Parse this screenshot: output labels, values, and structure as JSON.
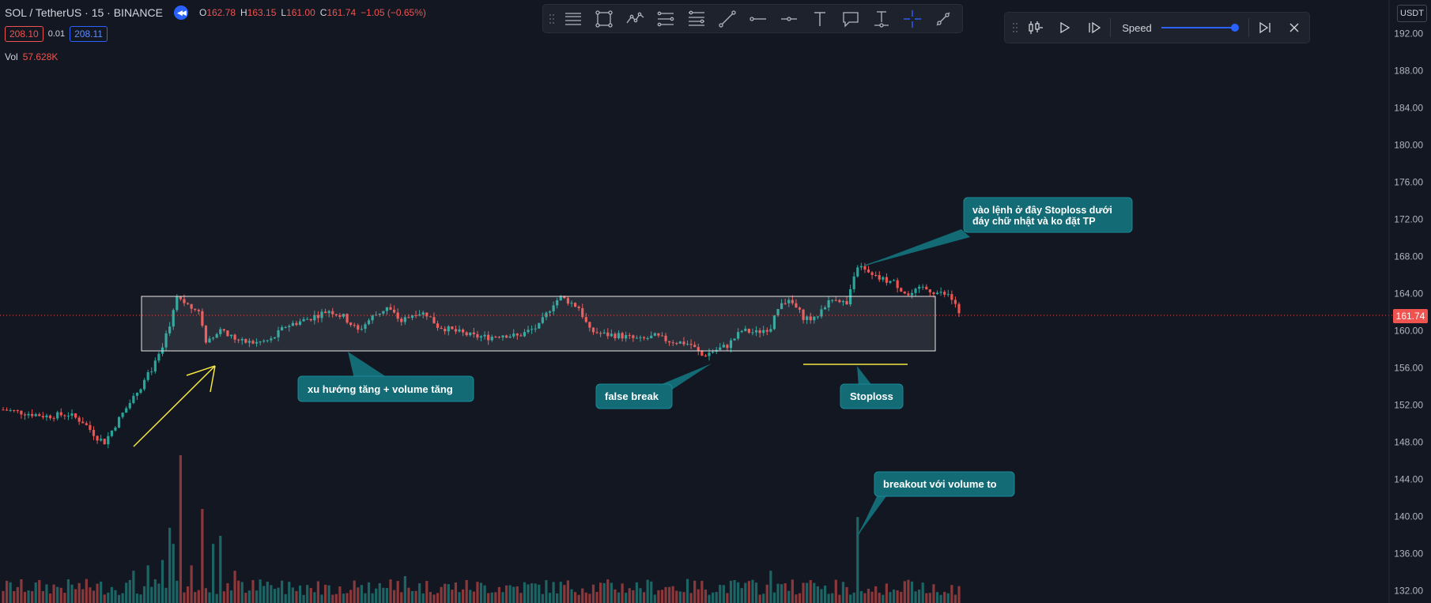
{
  "header": {
    "symbol": "SOL / TetherUS · 15 · BINANCE",
    "o_label": "O",
    "o_value": "162.78",
    "h_label": "H",
    "h_value": "163.15",
    "l_label": "L",
    "l_value": "161.00",
    "c_label": "C",
    "c_value": "161.74",
    "change": "−1.05 (−0.65%)",
    "sell_price": "208.10",
    "spread": "0.01",
    "buy_price": "208.11",
    "volume_label": "Vol",
    "volume_value": "57.628K"
  },
  "price_axis": {
    "currency_button": "USDT",
    "ticks": [
      "192.00",
      "188.00",
      "184.00",
      "180.00",
      "176.00",
      "172.00",
      "168.00",
      "164.00",
      "160.00",
      "156.00",
      "152.00",
      "148.00",
      "144.00",
      "140.00",
      "136.00",
      "132.00"
    ],
    "last_price": "161.74"
  },
  "drawing_toolbar": {
    "tools": [
      "horizontal-lines-icon",
      "rectangle-icon",
      "path-icon",
      "parallel-channel-icon",
      "fib-channel-icon",
      "trend-line-icon",
      "horizontal-ray-icon",
      "horizontal-line-icon",
      "text-icon",
      "callout-icon",
      "anchored-text-icon",
      "crosshair-icon",
      "brush-icon"
    ]
  },
  "replay_bar": {
    "speed_label": "Speed",
    "speed_level": 0.92
  },
  "chart_data": {
    "type": "candlestick",
    "symbol": "SOL/USDT",
    "interval": "15",
    "ylim": [
      130,
      194
    ],
    "last_close": 161.74,
    "annotations": [
      {
        "text": "xu hướng tăng + volume tăng"
      },
      {
        "text": "false break"
      },
      {
        "text": "Stoploss"
      },
      {
        "text": "vào lệnh ở đây Stoploss dưới đáy chữ nhật và ko đặt TP"
      },
      {
        "text": "breakout với volume to"
      }
    ],
    "range_box": {
      "top_price": 164.2,
      "bottom_price": 158.2
    },
    "stoploss_price": 156.4
  },
  "colors": {
    "up": "#26a69a",
    "down": "#ef5350",
    "callout": "#136b75",
    "accent": "#2962ff",
    "annotation_line": "#f5e642"
  }
}
